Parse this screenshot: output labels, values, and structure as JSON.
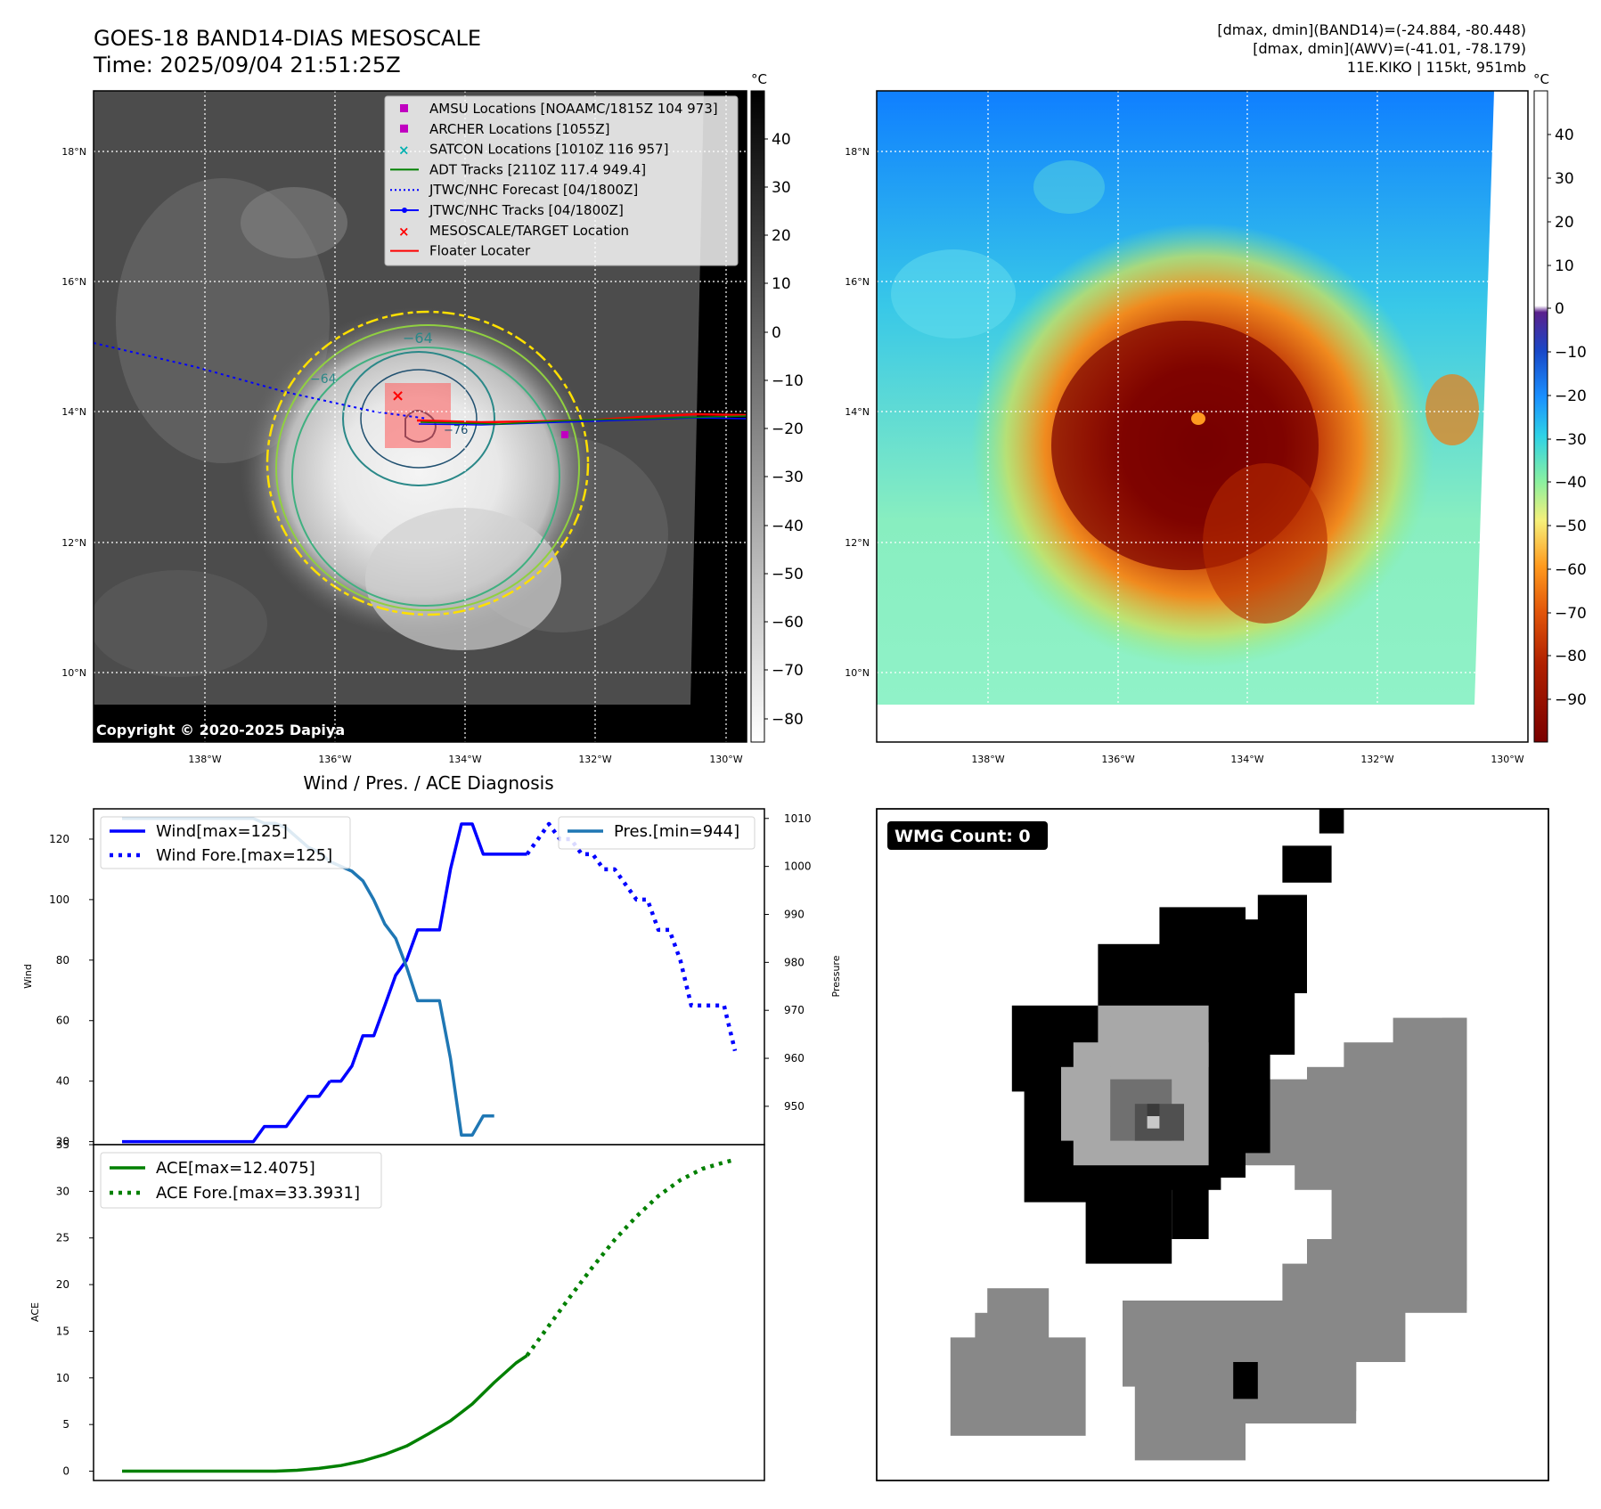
{
  "header": {
    "title": "GOES-18 BAND14-DIAS MESOSCALE",
    "time": "Time: 2025/09/04 21:51:25Z",
    "stats_band14": "[dmax, dmin](BAND14)=(-24.884, -80.448)",
    "stats_awv": "[dmax, dmin](AWV)=(-41.01, -78.179)",
    "storm": "11E.KIKO | 115kt, 951mb"
  },
  "map_axes": {
    "lat_ticks": [
      "18°N",
      "16°N",
      "14°N",
      "12°N",
      "10°N"
    ],
    "lon_ticks": [
      "138°W",
      "136°W",
      "134°W",
      "132°W",
      "130°W"
    ]
  },
  "panel_ir": {
    "colorbar_unit": "°C",
    "colorbar_ticks": [
      "40",
      "30",
      "20",
      "10",
      "0",
      "−10",
      "−20",
      "−30",
      "−40",
      "−50",
      "−60",
      "−70",
      "−80"
    ],
    "contour_labels": [
      "−64",
      "−64",
      "−76"
    ],
    "copyright": "Copyright © 2020-2025 Dapiya",
    "legend": [
      {
        "label": "AMSU Locations [NOAAMC/1815Z 104 973]",
        "marker": "square",
        "color": "#c000c0"
      },
      {
        "label": "ARCHER Locations [1055Z]",
        "marker": "square",
        "color": "#c000c0"
      },
      {
        "label": "SATCON Locations [1010Z 116 957]",
        "marker": "x",
        "color": "#00b0b0"
      },
      {
        "label": "ADT Tracks [2110Z 117.4 949.4]",
        "marker": "line",
        "color": "#008000"
      },
      {
        "label": "JTWC/NHC Forecast [04/1800Z]",
        "marker": "dotted",
        "color": "#0000ff"
      },
      {
        "label": "JTWC/NHC Tracks [04/1800Z]",
        "marker": "line-dot",
        "color": "#0000ff"
      },
      {
        "label": "MESOSCALE/TARGET Location",
        "marker": "x",
        "color": "#ff0000"
      },
      {
        "label": "Floater Locater",
        "marker": "line",
        "color": "#ff0000"
      }
    ]
  },
  "panel_color": {
    "colorbar_unit": "°C",
    "colorbar_ticks": [
      "40",
      "30",
      "20",
      "10",
      "0",
      "−10",
      "−20",
      "−30",
      "−40",
      "−50",
      "−60",
      "−70",
      "−80",
      "−90"
    ]
  },
  "panel_wmg": {
    "badge": "WMG Count: 0"
  },
  "chart_data": [
    {
      "type": "line",
      "title": "Wind / Pres. / ACE Diagnosis",
      "ylabel": "Wind",
      "y2label": "Pressure",
      "ylim": [
        19,
        130
      ],
      "y2lim": [
        942,
        1012
      ],
      "yticks": [
        20,
        40,
        60,
        80,
        100,
        120
      ],
      "y2ticks": [
        950,
        960,
        970,
        980,
        990,
        1000,
        1010
      ],
      "series": [
        {
          "name": "Wind[max=125]",
          "style": "solid",
          "color": "#0000ff",
          "axis": "left",
          "x": [
            0,
            1,
            2,
            3,
            4,
            5,
            6,
            7,
            8,
            9,
            10,
            11,
            12,
            13,
            14,
            15,
            16,
            17,
            18,
            19
          ],
          "values": [
            20,
            20,
            20,
            20,
            20,
            20,
            20,
            20,
            20,
            20,
            20,
            20,
            20,
            25,
            25,
            25,
            30,
            35,
            35,
            40
          ]
        },
        {
          "name": "",
          "style": "solid",
          "color": "#0000ff",
          "axis": "left",
          "x": [
            19,
            20,
            21,
            22,
            23,
            24,
            25,
            26,
            27,
            28,
            29,
            30,
            31,
            32,
            33,
            34,
            35,
            36,
            37
          ],
          "values": [
            40,
            40,
            45,
            55,
            55,
            65,
            75,
            80,
            90,
            90,
            90,
            110,
            125,
            125,
            115,
            115,
            115,
            115,
            115
          ]
        },
        {
          "name": "Wind Fore.[max=125]",
          "style": "dotted",
          "color": "#0000ff",
          "axis": "left",
          "x": [
            37,
            38,
            39,
            40,
            41,
            42,
            43,
            44,
            45,
            46,
            47,
            48,
            49,
            50,
            51,
            52,
            53,
            54,
            55,
            56
          ],
          "values": [
            115,
            120,
            125,
            120,
            120,
            115,
            115,
            110,
            110,
            105,
            100,
            100,
            90,
            90,
            80,
            65,
            65,
            65,
            65,
            50
          ]
        },
        {
          "name": "Pres.[min=944]",
          "style": "solid",
          "color": "#1f77b4",
          "axis": "right",
          "x": [
            0,
            1,
            2,
            3,
            4,
            5,
            6,
            7,
            8,
            9,
            10,
            11,
            12,
            13,
            14,
            15,
            16,
            17,
            18,
            19,
            20,
            21,
            22,
            23,
            24,
            25,
            26,
            27,
            28,
            29,
            30,
            31,
            32,
            33,
            34
          ],
          "values": [
            1010,
            1010,
            1010,
            1010,
            1010,
            1010,
            1010,
            1010,
            1010,
            1010,
            1010,
            1010,
            1010,
            1009,
            1009,
            1008,
            1006,
            1004,
            1003,
            1001,
            1000,
            999,
            997,
            993,
            988,
            985,
            979,
            972,
            972,
            972,
            960,
            944,
            944,
            948,
            948
          ]
        }
      ]
    },
    {
      "type": "line",
      "ylabel": "ACE",
      "ylim": [
        -1,
        35
      ],
      "yticks": [
        0,
        5,
        10,
        15,
        20,
        25,
        30,
        35
      ],
      "series": [
        {
          "name": "ACE[max=12.4075]",
          "style": "solid",
          "color": "#008000",
          "x": [
            0,
            2,
            4,
            6,
            8,
            10,
            12,
            14,
            16,
            18,
            20,
            22,
            24,
            26,
            28,
            30,
            32,
            34,
            36,
            37
          ],
          "values": [
            0,
            0,
            0,
            0,
            0,
            0,
            0,
            0,
            0.1,
            0.3,
            0.6,
            1.1,
            1.8,
            2.7,
            4.0,
            5.4,
            7.2,
            9.5,
            11.6,
            12.4
          ]
        },
        {
          "name": "ACE Fore.[max=33.3931]",
          "style": "dotted",
          "color": "#008000",
          "x": [
            37,
            39,
            41,
            43,
            45,
            47,
            49,
            51,
            53,
            55,
            56
          ],
          "values": [
            12.4,
            15.6,
            18.8,
            21.9,
            24.8,
            27.3,
            29.5,
            31.2,
            32.4,
            33.1,
            33.39
          ]
        }
      ]
    }
  ]
}
